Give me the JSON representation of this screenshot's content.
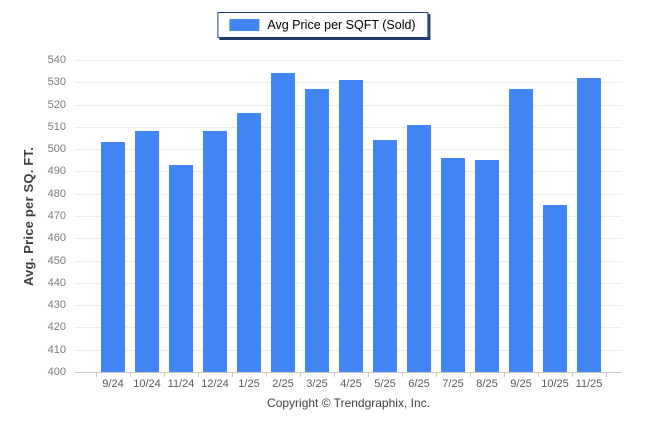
{
  "legend": {
    "label": "Avg Price per SQFT (Sold)"
  },
  "footer": {
    "copyright": "Copyright © Trendgraphix, Inc."
  },
  "colors": {
    "bar": "#4285F4",
    "legend_border": "#1e3c6e"
  },
  "chart_data": {
    "type": "bar",
    "title": "",
    "categories": [
      "9/24",
      "10/24",
      "11/24",
      "12/24",
      "1/25",
      "2/25",
      "3/25",
      "4/25",
      "5/25",
      "6/25",
      "7/25",
      "8/25",
      "9/25",
      "10/25",
      "11/25"
    ],
    "series": [
      {
        "name": "Avg Price per SQFT (Sold)",
        "values": [
          503,
          508,
          493,
          508,
          516,
          534,
          527,
          531,
          504,
          511,
          496,
          495,
          527,
          475,
          532
        ]
      }
    ],
    "xlabel": "",
    "ylabel": "Avg. Price per SQ. FT.",
    "ylim": [
      400,
      540
    ],
    "ytick_step": 10,
    "grid": true,
    "legend_position": "top-center"
  }
}
